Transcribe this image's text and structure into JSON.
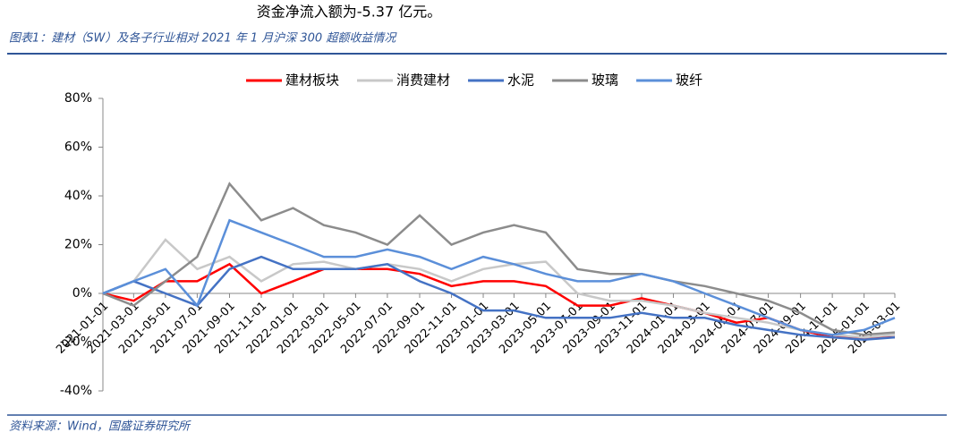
{
  "intro": "资金净流入额为-5.37 亿元。",
  "chart_data": {
    "type": "line",
    "title": "图表1：建材（SW）及各子行业相对 2021 年 1 月沪深 300 超额收益情况",
    "x": [
      "2021-01-01",
      "2021-03-01",
      "2021-05-01",
      "2021-07-01",
      "2021-09-01",
      "2021-11-01",
      "2022-01-01",
      "2022-03-01",
      "2022-05-01",
      "2022-07-01",
      "2022-09-01",
      "2022-11-01",
      "2023-01-01",
      "2023-03-01",
      "2023-05-01",
      "2023-07-01",
      "2023-09-01",
      "2023-11-01",
      "2024-01-01",
      "2024-03-01",
      "2024-05-01",
      "2024-07-01",
      "2024-09-01",
      "2024-11-01",
      "2025-01-01",
      "2025-03-01"
    ],
    "xticks": [
      "2021-01-01",
      "2021-03-01",
      "2021-05-01",
      "2021-07-01",
      "2021-09-01",
      "2021-11-01",
      "2022-01-01",
      "2022-03-01",
      "2022-05-01",
      "2022-07-01",
      "2022-09-01",
      "2022-11-01",
      "2023-01-01",
      "2023-03-01",
      "2023-05-01",
      "2023-07-01",
      "2023-09-01",
      "2023-11-01",
      "2024-01-01",
      "2024-03-01",
      "2024-05-01",
      "2024-07-01",
      "2024-09-01",
      "2024-11-01",
      "2025-01-01",
      "2025-03-01"
    ],
    "series": [
      {
        "name": "建材板块",
        "color": "#ff0000",
        "values": [
          0,
          -3,
          5,
          5,
          12,
          0,
          5,
          10,
          10,
          10,
          8,
          3,
          5,
          5,
          3,
          -5,
          -5,
          -2,
          -5,
          -8,
          -12,
          -10,
          -15,
          -18,
          -18,
          -18
        ]
      },
      {
        "name": "消费建材",
        "color": "#c8c8c8",
        "values": [
          0,
          5,
          22,
          10,
          15,
          5,
          12,
          13,
          10,
          12,
          10,
          5,
          10,
          12,
          13,
          0,
          -3,
          -3,
          -5,
          -8,
          -10,
          -12,
          -15,
          -17,
          -18,
          -17
        ]
      },
      {
        "name": "水泥",
        "color": "#4472c4",
        "values": [
          0,
          5,
          0,
          -5,
          10,
          15,
          10,
          10,
          10,
          12,
          5,
          0,
          -7,
          -7,
          -10,
          -10,
          -10,
          -8,
          -10,
          -10,
          -13,
          -15,
          -17,
          -18,
          -19,
          -18
        ]
      },
      {
        "name": "玻璃",
        "color": "#8c8c8c",
        "values": [
          0,
          -5,
          5,
          15,
          45,
          30,
          35,
          28,
          25,
          20,
          32,
          20,
          25,
          28,
          25,
          10,
          8,
          8,
          5,
          3,
          0,
          -3,
          -8,
          -15,
          -17,
          -16
        ]
      },
      {
        "name": "玻纤",
        "color": "#5b8fd9",
        "values": [
          0,
          5,
          10,
          -5,
          30,
          25,
          20,
          15,
          15,
          18,
          15,
          10,
          15,
          12,
          8,
          5,
          5,
          8,
          5,
          0,
          -5,
          -10,
          -15,
          -17,
          -15,
          -10
        ]
      }
    ],
    "ylim": [
      -40,
      80
    ],
    "yticks": [
      {
        "value": -40,
        "label": "-40%"
      },
      {
        "value": -20,
        "label": "-20%"
      },
      {
        "value": 0,
        "label": "0%"
      },
      {
        "value": 20,
        "label": "20%"
      },
      {
        "value": 40,
        "label": "40%"
      },
      {
        "value": 60,
        "label": "60%"
      },
      {
        "value": 80,
        "label": "80%"
      }
    ],
    "grid": false,
    "legend": "top"
  },
  "source": "资料来源：Wind，国盛证券研究所"
}
